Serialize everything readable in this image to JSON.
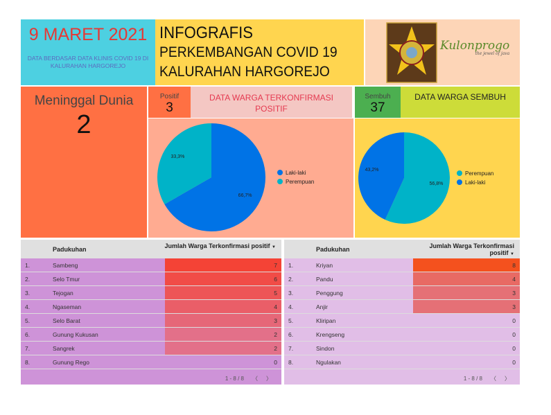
{
  "header": {
    "date": "9 MARET 2021",
    "date_note": "DATA BERDASAR DATA KLINIS COVID 19 DI KALURAHAN HARGOREJO",
    "title_lines": [
      "INFOGRAFIS",
      "PERKEMBANGAN COVID 19",
      "KALURAHAN HARGOREJO"
    ],
    "logo_text": "Kulonprogo",
    "logo_tagline": "the jewel of java"
  },
  "deaths": {
    "label": "Meninggal Dunia",
    "value": "2"
  },
  "positive": {
    "label": "Positif",
    "value": "3",
    "title": "DATA WARGA TERKONFIRMASI POSITIF"
  },
  "recovered": {
    "label": "Sembuh",
    "value": "37",
    "title": "DATA WARGA SEMBUH"
  },
  "colors": {
    "blue": "#0073E6",
    "teal": "#00B3C8",
    "heat_high": "#F44336"
  },
  "chart_data": [
    {
      "type": "pie",
      "slices": [
        {
          "name": "Laki-laki",
          "value": 66.7,
          "label": "66,7%",
          "color": "#0073E6"
        },
        {
          "name": "Perempuan",
          "value": 33.3,
          "label": "33,3%",
          "color": "#00B3C8"
        }
      ],
      "legend": "right"
    },
    {
      "type": "pie",
      "slices": [
        {
          "name": "Perempuan",
          "value": 56.8,
          "label": "56,8%",
          "color": "#00B3C8"
        },
        {
          "name": "Laki-laki",
          "value": 43.2,
          "label": "43,2%",
          "color": "#0073E6"
        }
      ],
      "legend": "right"
    }
  ],
  "tables": [
    {
      "col1": "Padukuhan",
      "col2": "Jumlah Warga Terkonfirmasi positif",
      "sort": "▼",
      "pager": "1 - 8 / 8",
      "prev": "〈",
      "next": "〉",
      "rows": [
        [
          "1.",
          "Sambeng",
          7
        ],
        [
          "2.",
          "Selo Tmur",
          6
        ],
        [
          "3.",
          "Tejogan",
          5
        ],
        [
          "4.",
          "Ngaseman",
          4
        ],
        [
          "5.",
          "Selo Barat",
          3
        ],
        [
          "6.",
          "Gunung Kukusan",
          2
        ],
        [
          "7.",
          "Sangrek",
          2
        ],
        [
          "8.",
          "Gunung Rego",
          0
        ]
      ]
    },
    {
      "col1": "Padukuhan",
      "col2": "Jumlah Warga Terkonfirmasi positif",
      "sort": "▼",
      "pager": "1 - 8 / 8",
      "prev": "〈",
      "next": "〉",
      "rows": [
        [
          "1.",
          "Kriyan",
          8
        ],
        [
          "2.",
          "Pandu",
          4
        ],
        [
          "3.",
          "Penggung",
          3
        ],
        [
          "4.",
          "Anjir",
          3
        ],
        [
          "5.",
          "Kliripan",
          0
        ],
        [
          "6.",
          "Krengseng",
          0
        ],
        [
          "7.",
          "Sindon",
          0
        ],
        [
          "8.",
          "Ngulakan",
          0
        ]
      ]
    }
  ]
}
